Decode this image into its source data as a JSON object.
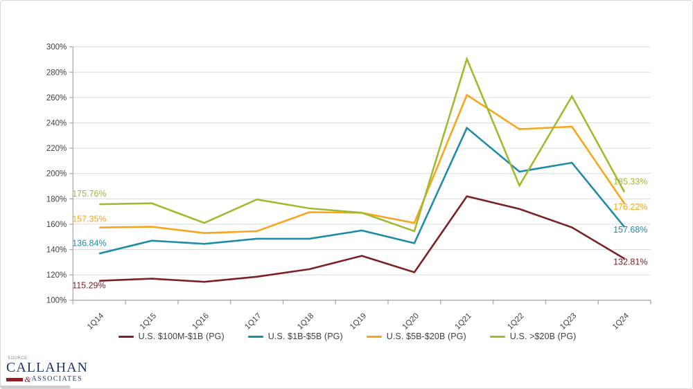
{
  "chart_data": {
    "type": "line",
    "categories": [
      "1Q14",
      "1Q15",
      "1Q16",
      "1Q17",
      "1Q18",
      "1Q19",
      "1Q20",
      "1Q21",
      "1Q22",
      "1Q23",
      "1Q24"
    ],
    "series": [
      {
        "name": "U.S. $100M-$1B (PG)",
        "color": "#7B2125",
        "values": [
          115.29,
          117,
          114.5,
          118.5,
          124.5,
          135,
          122,
          182,
          172,
          157.5,
          132.81
        ],
        "start_label": "115.29%",
        "end_label": "132.81%"
      },
      {
        "name": "U.S. $1B-$5B (PG)",
        "color": "#1E8CA8",
        "values": [
          136.84,
          147,
          144.5,
          148.5,
          148.5,
          155,
          145,
          236,
          201.5,
          208.5,
          157.68
        ],
        "start_label": "136.84%",
        "end_label": "157.68%"
      },
      {
        "name": "U.S. $5B-$20B (PG)",
        "color": "#F9A51B",
        "values": [
          157.35,
          158,
          153,
          154.5,
          169.5,
          169,
          161,
          262,
          235,
          237,
          176.22
        ],
        "start_label": "157.35%",
        "end_label": "176.22%"
      },
      {
        "name": "U.S. >$20B (PG)",
        "color": "#9FBB30",
        "values": [
          175.76,
          176.5,
          161,
          179.5,
          172.5,
          169,
          154.5,
          290.5,
          190.5,
          261,
          185.33
        ],
        "start_label": "175.76%",
        "end_label": "185.33%"
      }
    ],
    "ylim": [
      100,
      300
    ],
    "ytick_step": 20,
    "ytick_suffix": "%",
    "grid": true,
    "legend_position": "bottom"
  },
  "colors": {
    "grid": "#dcdcdc",
    "axis": "#ababab",
    "tick_label": "#3f3f3f"
  },
  "footer": {
    "source_label": "SOURCE:",
    "brand": "CALLAHAN",
    "ampersand": "&",
    "brand_suffix": "ASSOCIATES"
  }
}
